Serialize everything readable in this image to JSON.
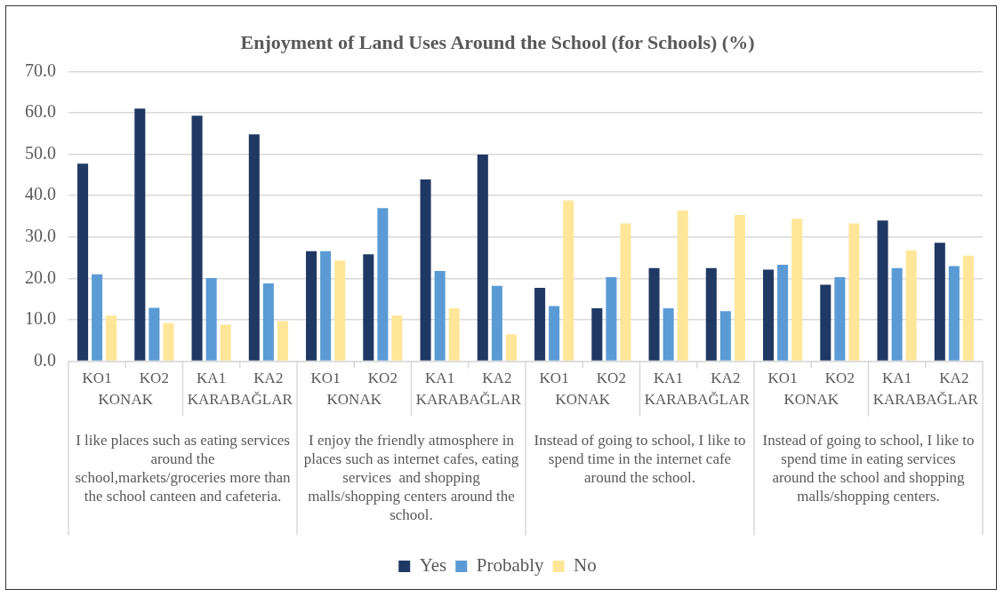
{
  "chart_data": {
    "type": "bar",
    "title": "Enjoyment of Land Uses Around the School (for Schools) (%)",
    "categories": [
      "KO1",
      "KO2",
      "KA1",
      "KA2",
      "KO1",
      "KO2",
      "KA1",
      "KA2",
      "KO1",
      "KO2",
      "KA1",
      "KA2",
      "KO1",
      "KO2",
      "KA1",
      "KA2"
    ],
    "series": [
      {
        "name": "Yes",
        "color": "#203864",
        "values": [
          47.7,
          61.0,
          59.3,
          54.8,
          26.6,
          25.8,
          43.9,
          49.9,
          17.7,
          12.8,
          22.5,
          22.5,
          22.1,
          18.5,
          34.0,
          28.6
        ]
      },
      {
        "name": "Probably",
        "color": "#5b9bd5",
        "values": [
          21.0,
          12.9,
          20.1,
          18.8,
          26.6,
          37.0,
          21.8,
          18.2,
          13.3,
          20.3,
          12.8,
          12.1,
          23.3,
          20.3,
          22.5,
          23.0
        ]
      },
      {
        "name": "No",
        "color": "#ffe699",
        "values": [
          11.0,
          9.2,
          8.8,
          9.7,
          24.3,
          11.0,
          12.8,
          6.5,
          38.8,
          33.3,
          36.4,
          35.3,
          34.4,
          33.3,
          26.8,
          25.5
        ]
      }
    ],
    "annotations": [
      "KONAK",
      "KARABAĞLAR",
      "I like places such as eating services around the school,markets/groceries more than the school canteen and cafeteria.",
      "KONAK",
      "KARABAĞLAR",
      "I enjoy the friendly atmosphere in places such as internet cafes, eating services  and shopping malls/shopping centers around the school.",
      "KONAK",
      "KARABAĞLAR",
      "Instead of going to school, I like to spend time in the internet cafe around the school.",
      "KONAK",
      "KARABAĞLAR",
      "Instead of going to school, I like to spend time in eating services around the school and shopping malls/shopping centers."
    ],
    "ylim": [
      0,
      70
    ],
    "yticks": [
      {
        "value": 0,
        "label": "0.0"
      },
      {
        "value": 10,
        "label": "10.0"
      },
      {
        "value": 20,
        "label": "20.0"
      },
      {
        "value": 30,
        "label": "30.0"
      },
      {
        "value": 40,
        "label": "40.0"
      },
      {
        "value": 50,
        "label": "50.0"
      },
      {
        "value": 60,
        "label": "60.0"
      },
      {
        "value": 70,
        "label": "70.0"
      }
    ],
    "grid": "y",
    "legend": "bottom"
  }
}
